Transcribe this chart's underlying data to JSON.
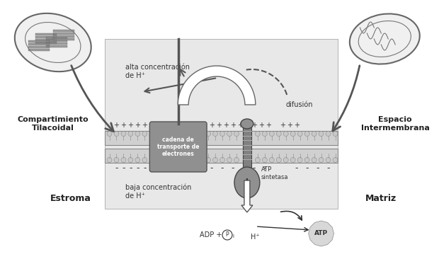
{
  "bg_color": "#f0f0f0",
  "white": "#ffffff",
  "light_gray": "#d8d8d8",
  "dark_gray": "#808080",
  "mid_gray": "#a0a0a0",
  "membrane_color": "#c8c8c8",
  "membrane_dark": "#909090",
  "protein_color": "#888888",
  "atp_bg": "#e0e0e0",
  "title_left": "Compartimiento\nTilacoidal",
  "title_right": "Espacio\nIntermembrana",
  "label_left_bottom": "Estroma",
  "label_right_bottom": "Matriz",
  "high_conc": "alta concentración\nde H⁺",
  "low_conc": "baja concentración\nde H⁺",
  "diffusion": "difusión",
  "chain_label": "cadena de\ntransporte de\nelectrones",
  "atp_label": "ATP\nsintetasa",
  "adp_label": "ADP + ",
  "pi_label": "P",
  "hi_label": "H⁺",
  "atp_product": "ATP"
}
